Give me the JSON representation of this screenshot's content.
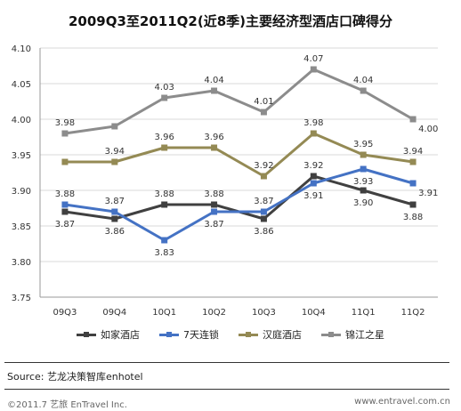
{
  "chart_data": {
    "type": "line",
    "title": "2009Q3至2011Q2(近8季)主要经济型酒店口碑得分",
    "categories": [
      "09Q3",
      "09Q4",
      "10Q1",
      "10Q2",
      "10Q3",
      "10Q4",
      "11Q1",
      "11Q2"
    ],
    "ylim": [
      3.75,
      4.1
    ],
    "yticks": [
      "3.75",
      "3.80",
      "3.85",
      "3.90",
      "3.95",
      "4.00",
      "4.05",
      "4.10"
    ],
    "grid": true,
    "legend_position": "bottom",
    "series": [
      {
        "name": "如家酒店",
        "color": "#404040",
        "values": [
          3.87,
          3.86,
          3.88,
          3.88,
          3.86,
          3.92,
          3.9,
          3.88
        ],
        "labels": [
          "3.87",
          "3.86",
          "3.88",
          "3.88",
          "3.86",
          "3.92",
          "3.90",
          "3.88"
        ],
        "label_pos": [
          "below",
          "below",
          "above",
          "above",
          "below",
          "above",
          "below",
          "below"
        ]
      },
      {
        "name": "7天连锁",
        "color": "#4472C4",
        "values": [
          3.88,
          3.87,
          3.83,
          3.87,
          3.87,
          3.91,
          3.93,
          3.91
        ],
        "labels": [
          "3.88",
          "3.87",
          "3.83",
          "3.87",
          "3.87",
          "3.91",
          "3.93",
          "3.91"
        ],
        "label_pos": [
          "above",
          "above",
          "below",
          "below",
          "above",
          "below",
          "below",
          "right"
        ]
      },
      {
        "name": "汉庭酒店",
        "color": "#948A54",
        "values": [
          3.94,
          3.94,
          3.96,
          3.96,
          3.92,
          3.98,
          3.95,
          3.94
        ],
        "labels": [
          "",
          "3.94",
          "3.96",
          "3.96",
          "3.92",
          "3.98",
          "3.95",
          "3.94"
        ],
        "label_pos": [
          "above",
          "above",
          "above",
          "above",
          "above",
          "above",
          "above",
          "above"
        ]
      },
      {
        "name": "锦江之星",
        "color": "#8C8C8C",
        "values": [
          3.98,
          3.99,
          4.03,
          4.04,
          4.01,
          4.07,
          4.04,
          4.0
        ],
        "labels": [
          "3.98",
          "",
          "4.03",
          "4.04",
          "4.01",
          "4.07",
          "4.04",
          "4.00"
        ],
        "label_pos": [
          "above",
          "above",
          "above",
          "above",
          "above",
          "above",
          "above",
          "right"
        ]
      }
    ]
  },
  "source_text": "Source: 艺龙决策智库enhotel",
  "footer_left": "©2011.7 艺旅 EnTravel Inc.",
  "footer_right": "www.entravel.com.cn"
}
